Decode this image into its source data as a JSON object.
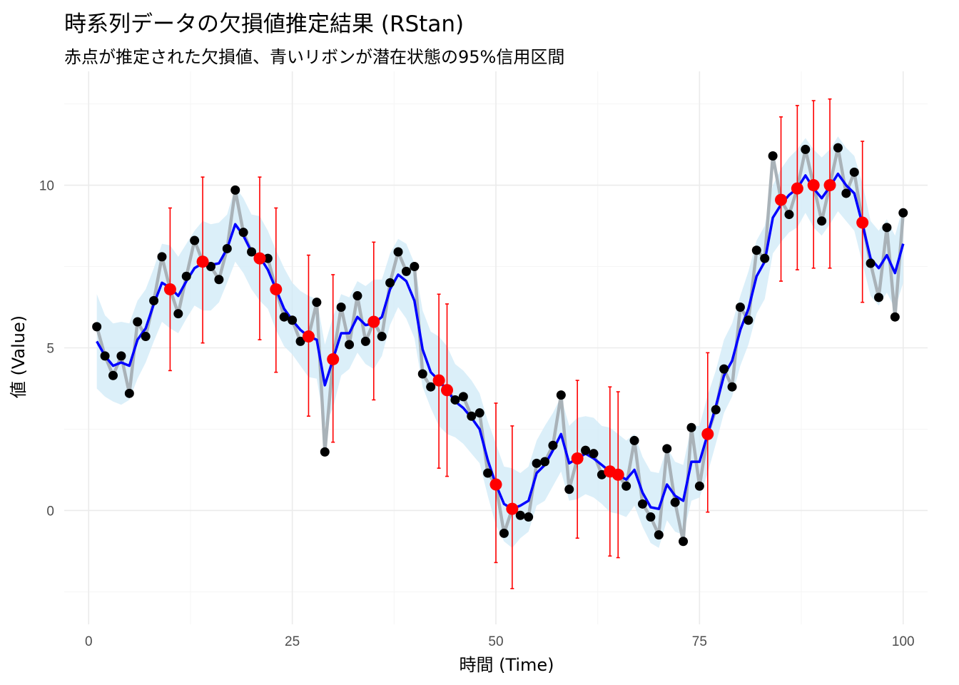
{
  "title": "時系列データの欠損値推定結果 (RStan)",
  "subtitle": "赤点が推定された欠損値、青いリボンが潜在状態の95%信用区間",
  "colors": {
    "observed_line": "#a9b2b8",
    "observed_point": "#000000",
    "latent_mean": "#0000ff",
    "ribbon": "#cfe9f7",
    "imputed": "#ff0000",
    "grid_major": "#ebebeb",
    "grid_minor": "#f5f5f5"
  },
  "chart_data": {
    "type": "line",
    "title": "時系列データの欠損値推定結果 (RStan)",
    "subtitle": "赤点が推定された欠損値、青いリボンが潜在状態の95%信用区間",
    "xlabel": "時間 (Time)",
    "ylabel": "値 (Value)",
    "xlim": [
      -3,
      103
    ],
    "ylim": [
      -3.5,
      13.5
    ],
    "xticks": [
      0,
      25,
      50,
      75,
      100
    ],
    "xtick_labels": [
      "0",
      "25",
      "50",
      "75",
      "100"
    ],
    "yticks": [
      0,
      5,
      10
    ],
    "ytick_labels": [
      "0",
      "5",
      "10"
    ],
    "grid": true,
    "legend": "none",
    "x": [
      1,
      2,
      3,
      4,
      5,
      6,
      7,
      8,
      9,
      10,
      11,
      12,
      13,
      14,
      15,
      16,
      17,
      18,
      19,
      20,
      21,
      22,
      23,
      24,
      25,
      26,
      27,
      28,
      29,
      30,
      31,
      32,
      33,
      34,
      35,
      36,
      37,
      38,
      39,
      40,
      41,
      42,
      43,
      44,
      45,
      46,
      47,
      48,
      49,
      50,
      51,
      52,
      53,
      54,
      55,
      56,
      57,
      58,
      59,
      60,
      61,
      62,
      63,
      64,
      65,
      66,
      67,
      68,
      69,
      70,
      71,
      72,
      73,
      74,
      75,
      76,
      77,
      78,
      79,
      80,
      81,
      82,
      83,
      84,
      85,
      86,
      87,
      88,
      89,
      90,
      91,
      92,
      93,
      94,
      95,
      96,
      97,
      98,
      99,
      100
    ],
    "series": [
      {
        "name": "observed",
        "values": [
          5.65,
          4.75,
          4.15,
          4.75,
          3.6,
          5.8,
          5.35,
          6.45,
          7.8,
          null,
          6.05,
          7.2,
          8.3,
          null,
          7.5,
          7.1,
          8.05,
          9.85,
          8.55,
          7.95,
          null,
          7.75,
          null,
          5.95,
          5.85,
          5.2,
          null,
          6.4,
          1.8,
          null,
          6.25,
          5.1,
          6.6,
          5.2,
          null,
          5.35,
          7.0,
          7.95,
          7.35,
          7.5,
          4.2,
          3.8,
          null,
          null,
          3.4,
          3.5,
          2.9,
          3.0,
          1.15,
          null,
          -0.7,
          null,
          -0.15,
          -0.2,
          1.45,
          1.5,
          2.0,
          3.55,
          0.65,
          null,
          1.85,
          1.75,
          1.1,
          null,
          null,
          0.75,
          2.15,
          0.2,
          -0.2,
          -0.75,
          1.9,
          0.25,
          -0.95,
          2.55,
          0.75,
          null,
          3.1,
          4.35,
          3.8,
          6.25,
          5.85,
          8.0,
          7.75,
          10.9,
          null,
          9.1,
          null,
          11.1,
          null,
          8.9,
          null,
          11.15,
          9.75,
          10.4,
          null,
          7.6,
          6.55,
          8.7,
          5.95,
          9.15
        ]
      },
      {
        "name": "imputed",
        "points": [
          {
            "x": 10,
            "y": 6.8,
            "lower": 4.3,
            "upper": 9.3
          },
          {
            "x": 14,
            "y": 7.65,
            "lower": 5.15,
            "upper": 10.25
          },
          {
            "x": 21,
            "y": 7.75,
            "lower": 5.25,
            "upper": 10.25
          },
          {
            "x": 23,
            "y": 6.8,
            "lower": 4.25,
            "upper": 9.3
          },
          {
            "x": 27,
            "y": 5.35,
            "lower": 2.9,
            "upper": 7.85
          },
          {
            "x": 30,
            "y": 4.65,
            "lower": 2.1,
            "upper": 7.25
          },
          {
            "x": 35,
            "y": 5.8,
            "lower": 3.4,
            "upper": 8.25
          },
          {
            "x": 43,
            "y": 4.0,
            "lower": 1.3,
            "upper": 6.65
          },
          {
            "x": 44,
            "y": 3.7,
            "lower": 1.05,
            "upper": 6.35
          },
          {
            "x": 50,
            "y": 0.8,
            "lower": -1.6,
            "upper": 3.3
          },
          {
            "x": 52,
            "y": 0.05,
            "lower": -2.4,
            "upper": 2.6
          },
          {
            "x": 60,
            "y": 1.6,
            "lower": -0.85,
            "upper": 4.0
          },
          {
            "x": 64,
            "y": 1.2,
            "lower": -1.4,
            "upper": 3.8
          },
          {
            "x": 65,
            "y": 1.1,
            "lower": -1.45,
            "upper": 3.65
          },
          {
            "x": 76,
            "y": 2.35,
            "lower": -0.05,
            "upper": 4.85
          },
          {
            "x": 85,
            "y": 9.55,
            "lower": 7.05,
            "upper": 12.1
          },
          {
            "x": 87,
            "y": 9.9,
            "lower": 7.4,
            "upper": 12.45
          },
          {
            "x": 89,
            "y": 10.0,
            "lower": 7.45,
            "upper": 12.6
          },
          {
            "x": 91,
            "y": 10.0,
            "lower": 7.45,
            "upper": 12.65
          },
          {
            "x": 95,
            "y": 8.85,
            "lower": 6.4,
            "upper": 11.35
          }
        ]
      },
      {
        "name": "latent mean",
        "values": [
          5.2,
          4.75,
          4.45,
          4.55,
          4.45,
          5.25,
          5.6,
          6.35,
          7.0,
          6.85,
          6.6,
          7.05,
          7.45,
          7.6,
          7.55,
          7.6,
          8.05,
          8.8,
          8.45,
          7.95,
          7.8,
          7.4,
          6.8,
          6.2,
          5.85,
          5.55,
          5.35,
          5.25,
          3.85,
          4.65,
          5.45,
          5.45,
          5.95,
          5.7,
          5.75,
          5.95,
          6.8,
          7.25,
          7.05,
          6.45,
          4.95,
          4.25,
          4.0,
          3.7,
          3.35,
          3.15,
          2.85,
          2.5,
          1.55,
          0.8,
          0.2,
          0.05,
          0.15,
          0.3,
          1.15,
          1.4,
          1.85,
          2.35,
          1.45,
          1.6,
          1.75,
          1.6,
          1.4,
          1.2,
          1.1,
          0.95,
          1.25,
          0.55,
          0.1,
          0.05,
          0.8,
          0.45,
          0.3,
          1.5,
          1.5,
          2.35,
          3.2,
          4.15,
          4.6,
          5.55,
          6.2,
          7.2,
          7.65,
          9.0,
          9.4,
          9.7,
          9.9,
          10.3,
          9.9,
          9.6,
          9.95,
          10.35,
          10.0,
          9.75,
          8.8,
          7.75,
          7.45,
          7.85,
          7.3,
          8.2
        ]
      },
      {
        "name": "95% credible interval",
        "lower": [
          3.75,
          3.5,
          3.35,
          3.25,
          3.4,
          4.05,
          4.55,
          5.2,
          5.8,
          5.6,
          5.45,
          5.9,
          6.3,
          6.15,
          6.15,
          6.4,
          7.0,
          7.65,
          7.3,
          6.8,
          6.45,
          6.2,
          5.55,
          5.05,
          4.8,
          4.45,
          4.1,
          4.05,
          2.6,
          3.15,
          4.15,
          4.35,
          4.85,
          4.5,
          4.35,
          4.75,
          5.7,
          6.25,
          5.9,
          5.3,
          3.8,
          3.15,
          2.6,
          2.35,
          2.25,
          2.05,
          1.75,
          1.45,
          0.45,
          -0.45,
          -0.95,
          -1.15,
          -0.85,
          -0.65,
          0.15,
          0.3,
          0.75,
          1.2,
          0.3,
          0.35,
          0.5,
          0.4,
          0.2,
          -0.05,
          -0.1,
          -0.2,
          0.15,
          -0.5,
          -1.0,
          -1.15,
          -0.3,
          -0.65,
          -0.75,
          0.3,
          0.4,
          1.15,
          2.05,
          3.0,
          3.5,
          4.45,
          5.1,
          6.05,
          6.5,
          7.9,
          8.25,
          8.55,
          8.7,
          9.15,
          8.7,
          8.45,
          8.8,
          9.2,
          8.9,
          8.6,
          7.6,
          6.6,
          6.3,
          6.7,
          6.2,
          7.0
        ],
        "upper": [
          6.65,
          6.0,
          5.75,
          5.8,
          5.75,
          6.45,
          6.8,
          7.45,
          8.2,
          8.15,
          7.8,
          8.2,
          8.6,
          8.9,
          8.8,
          8.85,
          9.1,
          9.95,
          9.6,
          9.1,
          9.05,
          8.6,
          8.0,
          7.45,
          7.0,
          6.75,
          6.6,
          6.5,
          5.1,
          5.95,
          6.65,
          6.55,
          7.05,
          6.9,
          7.1,
          7.1,
          7.9,
          8.35,
          8.2,
          7.6,
          6.15,
          5.5,
          5.35,
          5.05,
          4.5,
          4.3,
          4.0,
          3.6,
          2.75,
          2.05,
          1.35,
          1.3,
          1.15,
          1.35,
          2.15,
          2.6,
          3.0,
          3.5,
          2.6,
          2.85,
          2.9,
          2.85,
          2.6,
          2.55,
          2.35,
          2.15,
          2.35,
          1.65,
          1.2,
          1.15,
          1.95,
          1.5,
          1.4,
          2.6,
          2.6,
          3.55,
          4.3,
          5.25,
          5.75,
          6.6,
          7.35,
          8.3,
          8.75,
          10.0,
          10.5,
          10.85,
          11.1,
          11.45,
          11.1,
          10.85,
          11.1,
          11.5,
          11.15,
          10.9,
          10.05,
          8.9,
          8.6,
          8.95,
          8.45,
          9.35
        ]
      }
    ]
  }
}
